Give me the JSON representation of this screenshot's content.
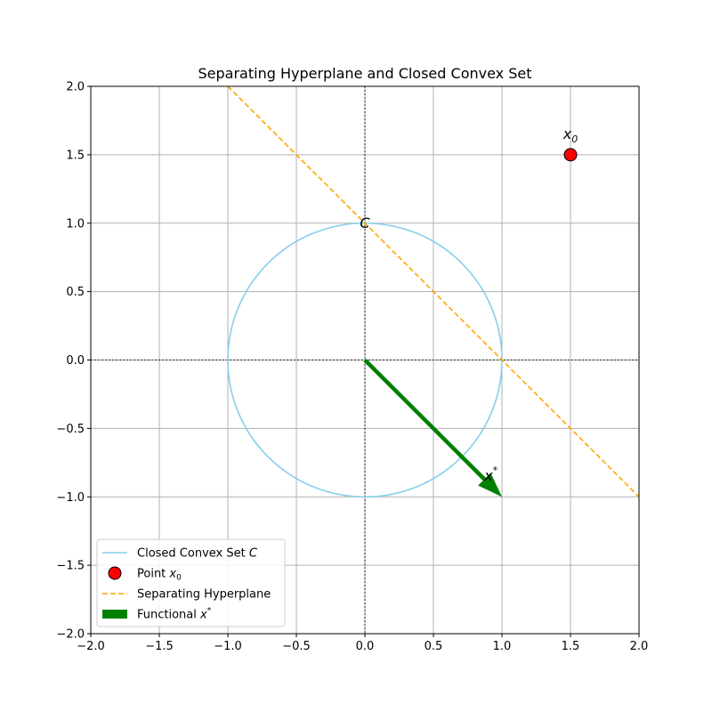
{
  "chart_data": {
    "type": "line",
    "title": "Separating Hyperplane and Closed Convex Set",
    "xlabel": "",
    "ylabel": "",
    "xlim": [
      -2.0,
      2.0
    ],
    "ylim": [
      -2.0,
      2.0
    ],
    "x_ticks": [
      -2.0,
      -1.5,
      -1.0,
      -0.5,
      0.0,
      0.5,
      1.0,
      1.5,
      2.0
    ],
    "y_ticks": [
      -2.0,
      -1.5,
      -1.0,
      -0.5,
      0.0,
      0.5,
      1.0,
      1.5,
      2.0
    ],
    "x_tick_labels": [
      "−2.0",
      "−1.5",
      "−1.0",
      "−0.5",
      "0.0",
      "0.5",
      "1.0",
      "1.5",
      "2.0"
    ],
    "y_tick_labels": [
      "−2.0",
      "−1.5",
      "−1.0",
      "−0.5",
      "0.0",
      "0.5",
      "1.0",
      "1.5",
      "2.0"
    ],
    "grid": true,
    "legend_position": "lower-left",
    "series": [
      {
        "name": "Closed Convex Set C",
        "kind": "circle",
        "center": [
          0,
          0
        ],
        "radius": 1.0,
        "color": "#87ceeb",
        "style": "solid"
      },
      {
        "name": "Point x0",
        "kind": "point",
        "x": 1.5,
        "y": 1.5,
        "color": "#ff0000",
        "edge_color": "#000000"
      },
      {
        "name": "Separating Hyperplane",
        "kind": "line",
        "x": [
          -1.0,
          2.0
        ],
        "y": [
          2.0,
          -1.0
        ],
        "color": "#ffa500",
        "style": "dashed"
      },
      {
        "name": "Functional x*",
        "kind": "arrow",
        "from": [
          0,
          0
        ],
        "to": [
          1.0,
          -1.0
        ],
        "color": "#008000"
      }
    ],
    "reference_lines": [
      {
        "axis": "x",
        "value": 0,
        "color": "#000000",
        "style": "dotted"
      },
      {
        "axis": "y",
        "value": 0,
        "color": "#000000",
        "style": "dotted"
      }
    ],
    "annotations": [
      {
        "text": "C",
        "x": 0.0,
        "y": 1.0
      },
      {
        "text": "x",
        "sub": "0",
        "x": 1.5,
        "y": 1.65
      },
      {
        "text": "x",
        "sup": "*",
        "x": 0.92,
        "y": -0.85
      }
    ],
    "legend": [
      {
        "label": "Closed Convex Set ",
        "math": "C",
        "symbol": "line",
        "color": "#87ceeb"
      },
      {
        "label": "Point ",
        "math": "x",
        "sub": "0",
        "symbol": "marker",
        "color": "#ff0000"
      },
      {
        "label": "Separating Hyperplane",
        "math": "",
        "symbol": "dashed",
        "color": "#ffa500"
      },
      {
        "label": "Functional ",
        "math": "x",
        "sup": "*",
        "symbol": "patch",
        "color": "#008000"
      }
    ]
  }
}
